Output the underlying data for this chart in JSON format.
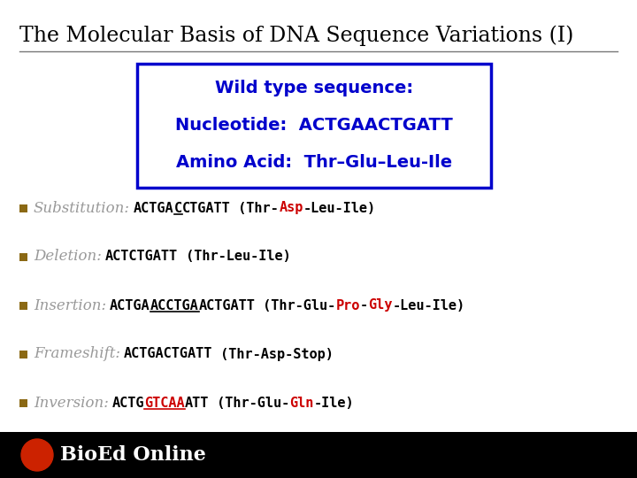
{
  "title": "The Molecular Basis of DNA Sequence Variations (I)",
  "title_fontsize": 17,
  "title_color": "#000000",
  "title_font": "serif",
  "box_text_line1": "Wild type sequence:",
  "box_text_line2": "Nucleotide:  ACTGAACTGATT",
  "box_text_line3": "Amino Acid:  Thr–Glu–Leu-Ile",
  "box_color": "#0000CC",
  "box_bg": "#ffffff",
  "box_border_color": "#0000CC",
  "bullet_color": "#8B6914",
  "bullet_items": [
    {
      "label": "Substitution:",
      "segs": [
        {
          "text": "ACTGA",
          "color": "#000000",
          "bold": true,
          "underline": false
        },
        {
          "text": "C",
          "color": "#000000",
          "bold": true,
          "underline": true
        },
        {
          "text": "CTGATT",
          "color": "#000000",
          "bold": true,
          "underline": false
        },
        {
          "text": " (Thr-",
          "color": "#000000",
          "bold": true,
          "underline": false
        },
        {
          "text": "Asp",
          "color": "#cc0000",
          "bold": true,
          "underline": false
        },
        {
          "text": "-Leu-Ile)",
          "color": "#000000",
          "bold": true,
          "underline": false
        }
      ]
    },
    {
      "label": "Deletion:",
      "segs": [
        {
          "text": "ACTCTGATT",
          "color": "#000000",
          "bold": true,
          "underline": false
        },
        {
          "text": " (Thr-Leu-Ile)",
          "color": "#000000",
          "bold": true,
          "underline": false
        }
      ]
    },
    {
      "label": "Insertion:",
      "segs": [
        {
          "text": "ACTGA",
          "color": "#000000",
          "bold": true,
          "underline": false
        },
        {
          "text": "ACCTGA",
          "color": "#000000",
          "bold": true,
          "underline": true
        },
        {
          "text": "ACTGATT",
          "color": "#000000",
          "bold": true,
          "underline": false
        },
        {
          "text": " (Thr-Glu-",
          "color": "#000000",
          "bold": true,
          "underline": false
        },
        {
          "text": "Pro",
          "color": "#cc0000",
          "bold": true,
          "underline": false
        },
        {
          "text": "-",
          "color": "#000000",
          "bold": true,
          "underline": false
        },
        {
          "text": "Gly",
          "color": "#cc0000",
          "bold": true,
          "underline": false
        },
        {
          "text": "-Leu-Ile)",
          "color": "#000000",
          "bold": true,
          "underline": false
        }
      ]
    },
    {
      "label": "Frameshift:",
      "segs": [
        {
          "text": "ACTGACTGATT",
          "color": "#000000",
          "bold": true,
          "underline": false
        },
        {
          "text": " (Thr-Asp-Stop)",
          "color": "#000000",
          "bold": true,
          "underline": false
        }
      ]
    },
    {
      "label": "Inversion:",
      "segs": [
        {
          "text": "ACTG",
          "color": "#000000",
          "bold": true,
          "underline": false
        },
        {
          "text": "GTCAA",
          "color": "#cc0000",
          "bold": true,
          "underline": true
        },
        {
          "text": "ATT",
          "color": "#000000",
          "bold": true,
          "underline": false
        },
        {
          "text": " (Thr-Glu-",
          "color": "#000000",
          "bold": true,
          "underline": false
        },
        {
          "text": "Gln",
          "color": "#cc0000",
          "bold": true,
          "underline": false
        },
        {
          "text": "-Ile)",
          "color": "#000000",
          "bold": true,
          "underline": false
        }
      ]
    }
  ],
  "footer_text": "BioEd Online",
  "footer_bg": "#000000",
  "footer_color": "#ffffff",
  "bg_color": "#ffffff"
}
